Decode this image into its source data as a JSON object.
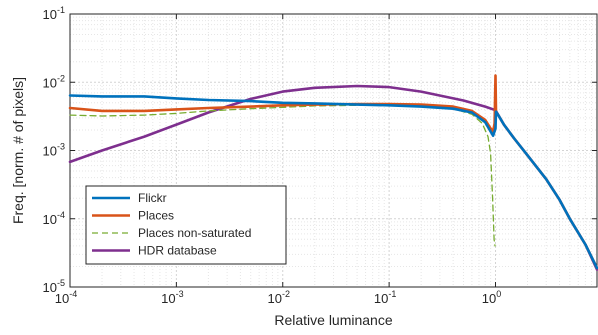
{
  "chart_data": {
    "type": "line",
    "xscale": "log",
    "yscale": "log",
    "xlabel": "Relative luminance",
    "ylabel": "Freq. [norm. # of pixels]",
    "xlim": [
      0.0001,
      9
    ],
    "ylim": [
      1e-05,
      0.1
    ],
    "grid": true,
    "legend_position": "bottom-left",
    "x_ticks": [
      {
        "value": 0.0001,
        "base": "10",
        "exp": "-4"
      },
      {
        "value": 0.001,
        "base": "10",
        "exp": "-3"
      },
      {
        "value": 0.01,
        "base": "10",
        "exp": "-2"
      },
      {
        "value": 0.1,
        "base": "10",
        "exp": "-1"
      },
      {
        "value": 1,
        "base": "10",
        "exp": "0"
      }
    ],
    "y_ticks": [
      {
        "value": 1e-05,
        "base": "10",
        "exp": "-5"
      },
      {
        "value": 0.0001,
        "base": "10",
        "exp": "-4"
      },
      {
        "value": 0.001,
        "base": "10",
        "exp": "-3"
      },
      {
        "value": 0.01,
        "base": "10",
        "exp": "-2"
      },
      {
        "value": 0.1,
        "base": "10",
        "exp": "-1"
      }
    ],
    "series": [
      {
        "name": "Flickr",
        "color": "#0072BD",
        "style": "solid",
        "points": [
          [
            0.0001,
            0.0064
          ],
          [
            0.0002,
            0.0062
          ],
          [
            0.0005,
            0.0062
          ],
          [
            0.001,
            0.0058
          ],
          [
            0.002,
            0.0055
          ],
          [
            0.005,
            0.0053
          ],
          [
            0.01,
            0.005
          ],
          [
            0.02,
            0.0049
          ],
          [
            0.05,
            0.0047
          ],
          [
            0.1,
            0.0046
          ],
          [
            0.2,
            0.0044
          ],
          [
            0.4,
            0.0041
          ],
          [
            0.6,
            0.0036
          ],
          [
            0.8,
            0.0026
          ],
          [
            0.9,
            0.0019
          ],
          [
            0.95,
            0.00165
          ],
          [
            1.0,
            0.0021
          ],
          [
            1.01,
            0.0037
          ],
          [
            1.05,
            0.0034
          ],
          [
            1.2,
            0.0024
          ],
          [
            1.5,
            0.0015
          ],
          [
            2,
            0.00085
          ],
          [
            3,
            0.00038
          ],
          [
            4,
            0.00019
          ],
          [
            5,
            0.0001
          ],
          [
            7,
            4.2e-05
          ],
          [
            9,
            1.9e-05
          ]
        ]
      },
      {
        "name": "Places",
        "color": "#D95319",
        "style": "solid",
        "points": [
          [
            0.0001,
            0.0042
          ],
          [
            0.0002,
            0.0038
          ],
          [
            0.0005,
            0.0038
          ],
          [
            0.001,
            0.004
          ],
          [
            0.002,
            0.0042
          ],
          [
            0.005,
            0.0044
          ],
          [
            0.01,
            0.0046
          ],
          [
            0.02,
            0.0047
          ],
          [
            0.05,
            0.0048
          ],
          [
            0.1,
            0.0048
          ],
          [
            0.2,
            0.0047
          ],
          [
            0.4,
            0.0044
          ],
          [
            0.6,
            0.0038
          ],
          [
            0.8,
            0.0028
          ],
          [
            0.9,
            0.0021
          ],
          [
            0.95,
            0.0019
          ],
          [
            0.98,
            0.0025
          ],
          [
            1.0,
            0.0125
          ],
          [
            1.01,
            0.0037
          ],
          [
            1.05,
            0.0034
          ],
          [
            1.2,
            0.0024
          ],
          [
            1.5,
            0.0015
          ],
          [
            2,
            0.00085
          ],
          [
            3,
            0.00038
          ],
          [
            4,
            0.00019
          ],
          [
            5,
            0.0001
          ],
          [
            7,
            4.2e-05
          ],
          [
            9,
            1.9e-05
          ]
        ]
      },
      {
        "name": "Places non-saturated",
        "color": "#77AC30",
        "style": "dashed",
        "points": [
          [
            0.0001,
            0.0033
          ],
          [
            0.0002,
            0.0032
          ],
          [
            0.0005,
            0.0033
          ],
          [
            0.001,
            0.0035
          ],
          [
            0.002,
            0.0038
          ],
          [
            0.005,
            0.0041
          ],
          [
            0.01,
            0.0043
          ],
          [
            0.02,
            0.0045
          ],
          [
            0.05,
            0.0046
          ],
          [
            0.1,
            0.0046
          ],
          [
            0.2,
            0.0045
          ],
          [
            0.4,
            0.0041
          ],
          [
            0.6,
            0.0034
          ],
          [
            0.75,
            0.0025
          ],
          [
            0.85,
            0.0016
          ],
          [
            0.9,
            0.0009
          ],
          [
            0.94,
            0.0002
          ],
          [
            0.97,
            5e-05
          ],
          [
            0.99,
            4e-05
          ]
        ]
      },
      {
        "name": "HDR database",
        "color": "#7E2F8E",
        "style": "solid",
        "points": [
          [
            0.0001,
            0.00068
          ],
          [
            0.0002,
            0.001
          ],
          [
            0.0005,
            0.0016
          ],
          [
            0.001,
            0.0024
          ],
          [
            0.002,
            0.0036
          ],
          [
            0.005,
            0.0057
          ],
          [
            0.01,
            0.0073
          ],
          [
            0.02,
            0.0083
          ],
          [
            0.05,
            0.0088
          ],
          [
            0.1,
            0.0085
          ],
          [
            0.2,
            0.0073
          ],
          [
            0.5,
            0.0054
          ],
          [
            0.8,
            0.0044
          ],
          [
            1.0,
            0.0039
          ],
          [
            1.2,
            0.0024
          ],
          [
            1.5,
            0.0015
          ],
          [
            2,
            0.00085
          ],
          [
            3,
            0.00038
          ],
          [
            4,
            0.00019
          ],
          [
            5,
            0.0001
          ],
          [
            7,
            4.2e-05
          ],
          [
            9,
            1.8e-05
          ]
        ]
      }
    ]
  }
}
